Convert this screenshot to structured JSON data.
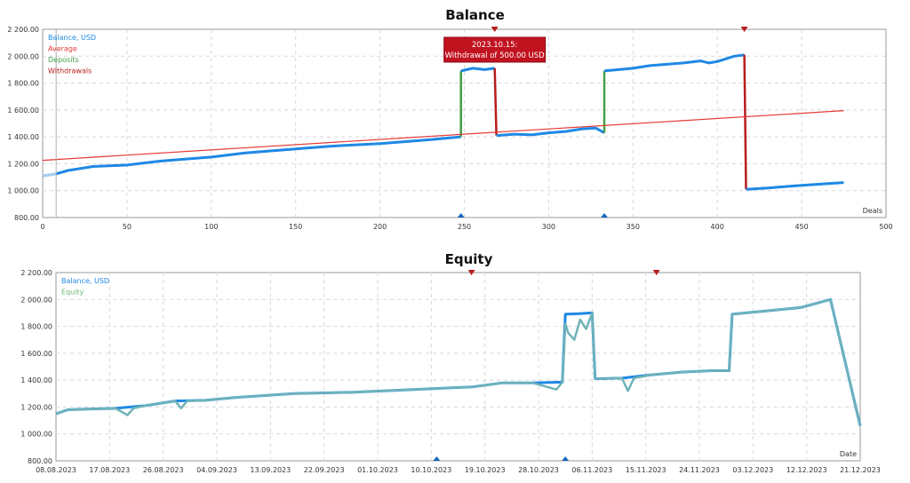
{
  "chart_data": [
    {
      "type": "line",
      "title": "Balance",
      "xlabel": "Deals",
      "ylabel": "",
      "xlim": [
        0,
        500
      ],
      "ylim": [
        800,
        2200
      ],
      "x_ticks": [
        0,
        50,
        100,
        150,
        200,
        250,
        300,
        350,
        400,
        450,
        500
      ],
      "y_ticks": [
        800,
        1000,
        1200,
        1400,
        1600,
        1800,
        2000,
        2200
      ],
      "y_tick_labels": [
        "800.00",
        "1 000.00",
        "1 200.00",
        "1 400.00",
        "1 600.00",
        "1 800.00",
        "2 000.00",
        "2 200.00"
      ],
      "legend": [
        "Balance, USD",
        "Average",
        "Deposits",
        "Withdrawals"
      ],
      "colors": {
        "balance": "#1e88e5",
        "balance_start": "#a9cdef",
        "average": "#e53935",
        "deposits": "#43a047",
        "withdrawals": "#b71c1c"
      },
      "series": [
        {
          "name": "Balance, USD",
          "x": [
            0,
            8,
            15,
            20,
            30,
            50,
            70,
            100,
            120,
            150,
            170,
            200,
            230,
            248
          ],
          "y": [
            1110,
            1125,
            1150,
            1160,
            1180,
            1190,
            1220,
            1250,
            1280,
            1310,
            1330,
            1350,
            1380,
            1400
          ]
        },
        {
          "name": "Deposits",
          "x": [
            248,
            248
          ],
          "y": [
            1400,
            1890
          ]
        },
        {
          "name": "Balance, USD",
          "x": [
            248,
            255,
            262,
            268
          ],
          "y": [
            1890,
            1910,
            1900,
            1910
          ]
        },
        {
          "name": "Withdrawals",
          "x": [
            268,
            269
          ],
          "y": [
            1910,
            1410
          ]
        },
        {
          "name": "Balance, USD",
          "x": [
            269,
            280,
            290,
            300,
            310,
            320,
            328,
            333
          ],
          "y": [
            1410,
            1420,
            1415,
            1430,
            1440,
            1460,
            1465,
            1430
          ]
        },
        {
          "name": "Deposits",
          "x": [
            333,
            333
          ],
          "y": [
            1430,
            1890
          ]
        },
        {
          "name": "Balance, USD",
          "x": [
            333,
            350,
            360,
            370,
            380,
            390,
            395,
            400,
            405,
            410,
            416
          ],
          "y": [
            1890,
            1910,
            1930,
            1940,
            1950,
            1965,
            1950,
            1960,
            1980,
            2000,
            2010
          ]
        },
        {
          "name": "Withdrawals",
          "x": [
            416,
            417
          ],
          "y": [
            2010,
            1010
          ]
        },
        {
          "name": "Balance, USD",
          "x": [
            417,
            430,
            450,
            475
          ],
          "y": [
            1010,
            1020,
            1040,
            1060
          ]
        },
        {
          "name": "Average",
          "x": [
            0,
            475
          ],
          "y": [
            1225,
            1595
          ]
        }
      ],
      "markers": {
        "deposits_x": [
          248,
          333
        ],
        "withdrawals_x": [
          268,
          416
        ]
      },
      "annotation": {
        "x": 268,
        "line1": "2023.10.15:",
        "line2": "Withdrawal of 500.00 USD"
      }
    },
    {
      "type": "line",
      "title": "Equity",
      "xlabel": "Date",
      "ylabel": "",
      "xlim": [
        0,
        135
      ],
      "ylim": [
        800,
        2200
      ],
      "x_tick_labels": [
        "08.08.2023",
        "17.08.2023",
        "26.08.2023",
        "04.09.2023",
        "13.09.2023",
        "22.09.2023",
        "01.10.2023",
        "10.10.2023",
        "19.10.2023",
        "28.10.2023",
        "06.11.2023",
        "15.11.2023",
        "24.11.2023",
        "03.12.2023",
        "12.12.2023",
        "21.12.2023"
      ],
      "y_ticks": [
        800,
        1000,
        1200,
        1400,
        1600,
        1800,
        2000,
        2200
      ],
      "y_tick_labels": [
        "800.00",
        "1 000.00",
        "1 200.00",
        "1 400.00",
        "1 600.00",
        "1 800.00",
        "2 000.00",
        "2 200.00"
      ],
      "legend": [
        "Balance, USD",
        "Equity"
      ],
      "colors": {
        "balance": "#1e88e5",
        "equity": "#6fb86f",
        "overlap": "#6fb3b8"
      },
      "series": [
        {
          "name": "Balance, USD",
          "x": [
            0,
            2,
            5,
            10,
            15,
            20,
            25,
            30,
            40,
            50,
            60,
            70,
            75,
            80,
            85,
            85.5,
            88,
            90,
            90.5,
            95,
            100,
            105,
            110,
            113,
            113.5,
            125,
            130,
            135
          ],
          "y": [
            1150,
            1180,
            1185,
            1190,
            1210,
            1245,
            1250,
            1270,
            1300,
            1310,
            1330,
            1350,
            1380,
            1380,
            1385,
            1890,
            1895,
            1900,
            1410,
            1415,
            1440,
            1460,
            1470,
            1470,
            1890,
            1940,
            2000,
            1060
          ]
        },
        {
          "name": "Equity",
          "x": [
            0,
            2,
            5,
            10,
            12,
            13,
            15,
            20,
            21,
            22,
            25,
            30,
            40,
            50,
            60,
            70,
            75,
            80,
            84,
            85,
            85.5,
            86,
            87,
            88,
            89,
            90,
            90.5,
            95,
            96,
            97,
            100,
            105,
            110,
            113,
            113.5,
            125,
            130,
            135
          ],
          "y": [
            1150,
            1180,
            1185,
            1190,
            1140,
            1190,
            1210,
            1245,
            1190,
            1245,
            1250,
            1270,
            1300,
            1310,
            1330,
            1350,
            1380,
            1380,
            1330,
            1385,
            1820,
            1750,
            1700,
            1850,
            1780,
            1900,
            1410,
            1415,
            1320,
            1415,
            1440,
            1460,
            1470,
            1470,
            1890,
            1940,
            2000,
            1060
          ]
        }
      ],
      "markers": {
        "deposits_index": [
          7.1,
          9.5
        ],
        "withdrawals_index": [
          7.75,
          11.2
        ]
      }
    }
  ]
}
